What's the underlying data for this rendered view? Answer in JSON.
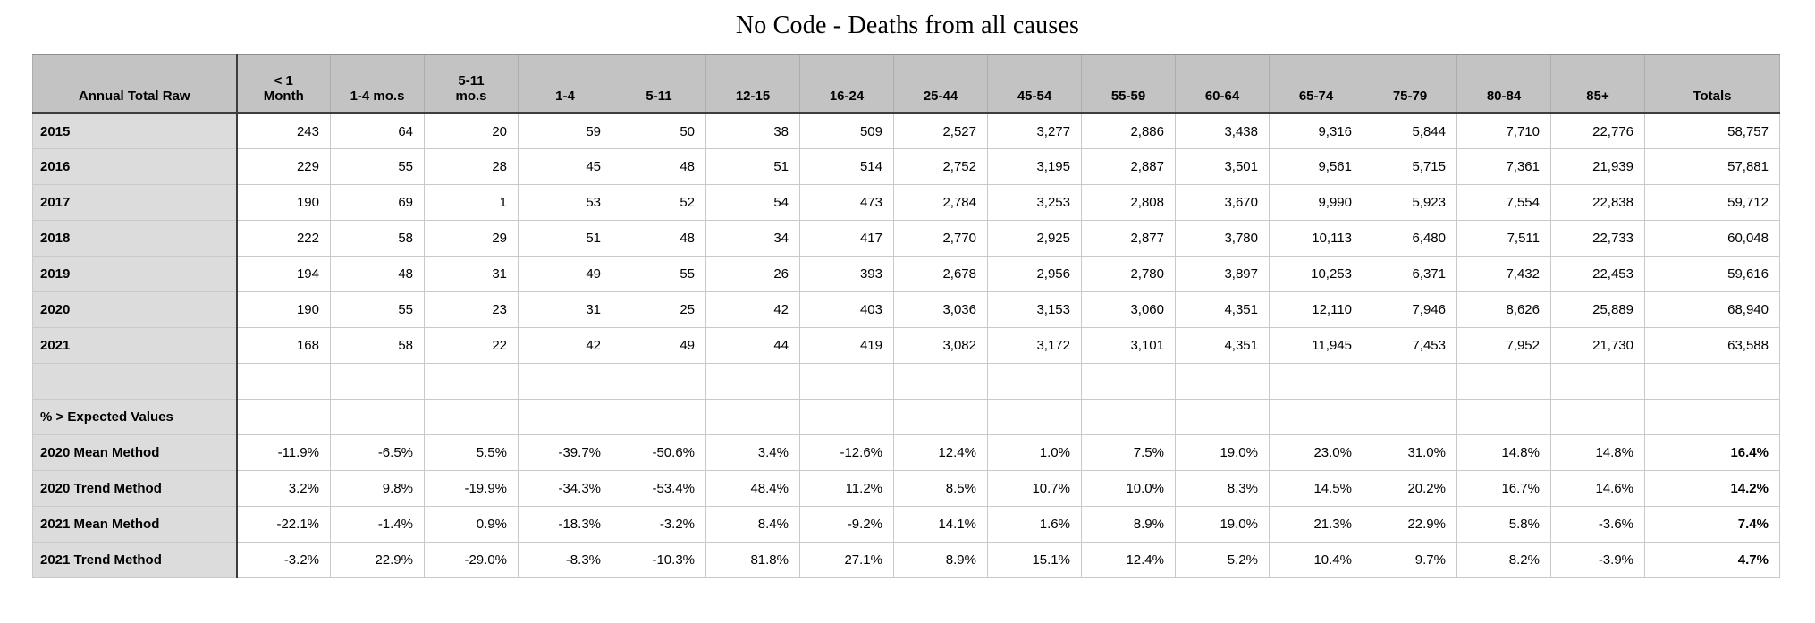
{
  "title": "No Code - Deaths from all causes",
  "colors": {
    "header_bg": "#c3c3c3",
    "row_label_bg": "#dcdcdc",
    "grid_line": "#c9c9c9",
    "dark_border": "#3d3d3d",
    "cell_bg": "#ffffff",
    "text": "#000000"
  },
  "chart_data": {
    "type": "table",
    "title": "No Code - Deaths from all causes",
    "columns": [
      "Annual Total Raw",
      "< 1\nMonth",
      "1-4 mo.s",
      "5-11\nmo.s",
      "1-4",
      "5-11",
      "12-15",
      "16-24",
      "25-44",
      "45-54",
      "55-59",
      "60-64",
      "65-74",
      "75-79",
      "80-84",
      "85+",
      "Totals"
    ],
    "rows": [
      {
        "kind": "year",
        "label": "2015",
        "values": [
          "243",
          "64",
          "20",
          "59",
          "50",
          "38",
          "509",
          "2,527",
          "3,277",
          "2,886",
          "3,438",
          "9,316",
          "5,844",
          "7,710",
          "22,776",
          "58,757"
        ]
      },
      {
        "kind": "year",
        "label": "2016",
        "values": [
          "229",
          "55",
          "28",
          "45",
          "48",
          "51",
          "514",
          "2,752",
          "3,195",
          "2,887",
          "3,501",
          "9,561",
          "5,715",
          "7,361",
          "21,939",
          "57,881"
        ]
      },
      {
        "kind": "year",
        "label": "2017",
        "values": [
          "190",
          "69",
          "1",
          "53",
          "52",
          "54",
          "473",
          "2,784",
          "3,253",
          "2,808",
          "3,670",
          "9,990",
          "5,923",
          "7,554",
          "22,838",
          "59,712"
        ]
      },
      {
        "kind": "year",
        "label": "2018",
        "values": [
          "222",
          "58",
          "29",
          "51",
          "48",
          "34",
          "417",
          "2,770",
          "2,925",
          "2,877",
          "3,780",
          "10,113",
          "6,480",
          "7,511",
          "22,733",
          "60,048"
        ]
      },
      {
        "kind": "year",
        "label": "2019",
        "values": [
          "194",
          "48",
          "31",
          "49",
          "55",
          "26",
          "393",
          "2,678",
          "2,956",
          "2,780",
          "3,897",
          "10,253",
          "6,371",
          "7,432",
          "22,453",
          "59,616"
        ]
      },
      {
        "kind": "year",
        "label": "2020",
        "values": [
          "190",
          "55",
          "23",
          "31",
          "25",
          "42",
          "403",
          "3,036",
          "3,153",
          "3,060",
          "4,351",
          "12,110",
          "7,946",
          "8,626",
          "25,889",
          "68,940"
        ]
      },
      {
        "kind": "year",
        "label": "2021",
        "values": [
          "168",
          "58",
          "22",
          "42",
          "49",
          "44",
          "419",
          "3,082",
          "3,172",
          "3,101",
          "4,351",
          "11,945",
          "7,453",
          "7,952",
          "21,730",
          "63,588"
        ]
      },
      {
        "kind": "spacer",
        "label": "",
        "values": []
      },
      {
        "kind": "section",
        "label": "% > Expected Values",
        "values": []
      },
      {
        "kind": "percent",
        "label": "2020 Mean Method",
        "values": [
          "-11.9%",
          "-6.5%",
          "5.5%",
          "-39.7%",
          "-50.6%",
          "3.4%",
          "-12.6%",
          "12.4%",
          "1.0%",
          "7.5%",
          "19.0%",
          "23.0%",
          "31.0%",
          "14.8%",
          "14.8%",
          "16.4%"
        ]
      },
      {
        "kind": "percent",
        "label": "2020 Trend Method",
        "values": [
          "3.2%",
          "9.8%",
          "-19.9%",
          "-34.3%",
          "-53.4%",
          "48.4%",
          "11.2%",
          "8.5%",
          "10.7%",
          "10.0%",
          "8.3%",
          "14.5%",
          "20.2%",
          "16.7%",
          "14.6%",
          "14.2%"
        ]
      },
      {
        "kind": "percent",
        "label": "2021 Mean Method",
        "values": [
          "-22.1%",
          "-1.4%",
          "0.9%",
          "-18.3%",
          "-3.2%",
          "8.4%",
          "-9.2%",
          "14.1%",
          "1.6%",
          "8.9%",
          "19.0%",
          "21.3%",
          "22.9%",
          "5.8%",
          "-3.6%",
          "7.4%"
        ]
      },
      {
        "kind": "percent",
        "label": "2021 Trend Method",
        "values": [
          "-3.2%",
          "22.9%",
          "-29.0%",
          "-8.3%",
          "-10.3%",
          "81.8%",
          "27.1%",
          "8.9%",
          "15.1%",
          "12.4%",
          "5.2%",
          "10.4%",
          "9.7%",
          "8.2%",
          "-3.9%",
          "4.7%"
        ]
      }
    ]
  }
}
